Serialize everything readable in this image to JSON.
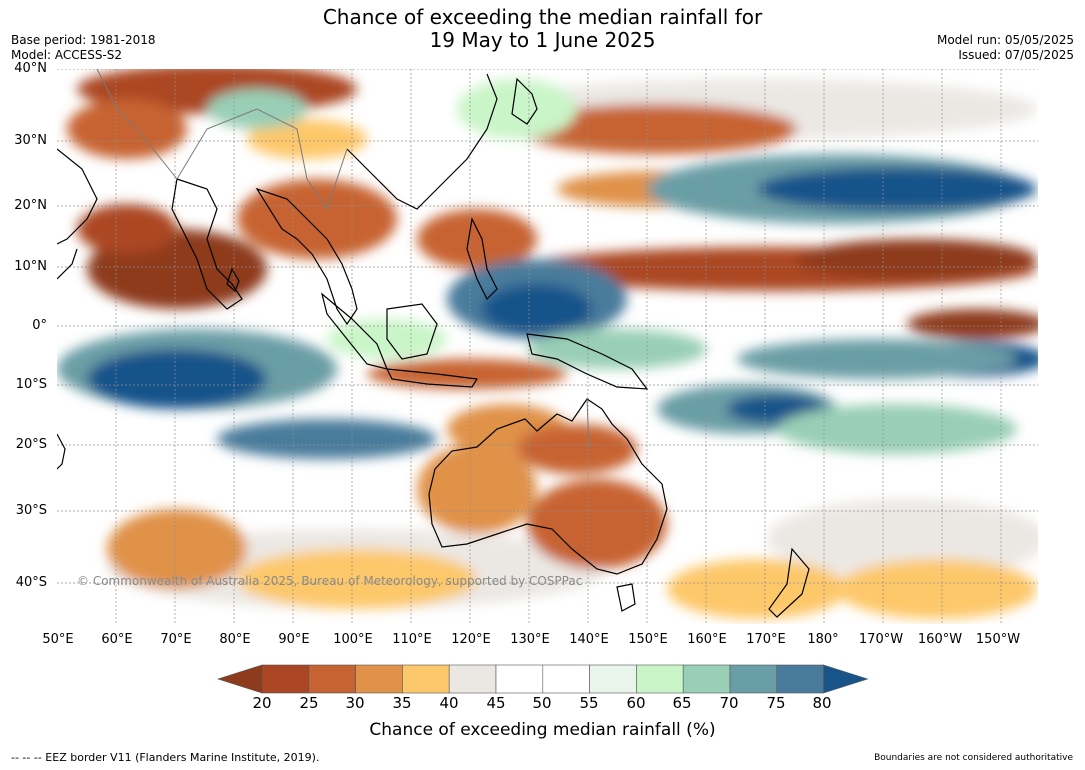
{
  "title": {
    "line1": "Chance of exceeding the median rainfall for",
    "line2": "19 May to 1 June 2025"
  },
  "meta_left": {
    "base_period": "Base period: 1981-2018",
    "model": "Model: ACCESS-S2"
  },
  "meta_right": {
    "model_run": "Model run: 05/05/2025",
    "issued": "Issued: 07/05/2025"
  },
  "map": {
    "latitude_labels": [
      "40°N",
      "30°N",
      "20°N",
      "10°N",
      "0°",
      "10°S",
      "20°S",
      "30°S",
      "40°S"
    ],
    "longitude_labels": [
      "50°E",
      "60°E",
      "70°E",
      "80°E",
      "90°E",
      "100°E",
      "110°E",
      "120°E",
      "130°E",
      "140°E",
      "150°E",
      "160°E",
      "170°E",
      "180°",
      "170°W",
      "160°W",
      "150°W"
    ],
    "copyright": "© Commonwealth of Australia 2025, Bureau of Meteorology, supported by COSPPac"
  },
  "colorbar": {
    "ticks": [
      "20",
      "25",
      "30",
      "35",
      "40",
      "45",
      "50",
      "55",
      "60",
      "65",
      "70",
      "75",
      "80"
    ],
    "colors": [
      "#8e3a1c",
      "#ab4624",
      "#c76333",
      "#e0924a",
      "#fdc86b",
      "#ebe8e4",
      "#ffffff",
      "#ffffff",
      "#e9f5ea",
      "#c9f5c8",
      "#99cfb6",
      "#6a9ea6",
      "#487b9b",
      "#18538a"
    ],
    "label": "Chance of exceeding median rainfall (%)"
  },
  "footer": {
    "eez_note": "--  --  -- EEZ border V11 (Flanders Marine Institute, 2019).",
    "boundary_note": "Boundaries are not considered authoritative"
  }
}
